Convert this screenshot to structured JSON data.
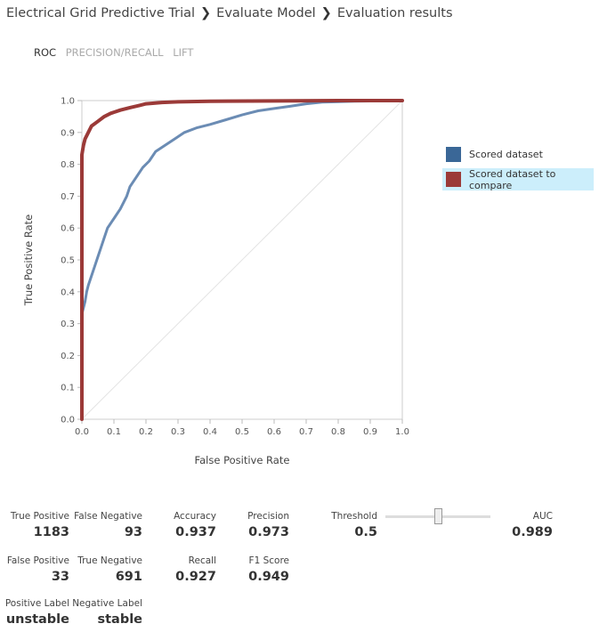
{
  "breadcrumb": {
    "items": [
      "Electrical Grid Predictive Trial",
      "Evaluate Model",
      "Evaluation results"
    ],
    "separator": "❯"
  },
  "tabs": [
    {
      "label": "ROC",
      "active": true
    },
    {
      "label": "PRECISION/RECALL",
      "active": false
    },
    {
      "label": "LIFT",
      "active": false
    }
  ],
  "legend": [
    {
      "label": "Scored dataset",
      "color": "#3a6797"
    },
    {
      "label": "Scored dataset to compare",
      "color": "#9b3a38"
    }
  ],
  "chart_data": {
    "type": "line",
    "xlabel": "False Positive Rate",
    "ylabel": "True Positive Rate",
    "xlim": [
      0.0,
      1.0
    ],
    "ylim": [
      0.0,
      1.0
    ],
    "xticks": [
      "0.0",
      "0.1",
      "0.2",
      "0.3",
      "0.4",
      "0.5",
      "0.6",
      "0.7",
      "0.8",
      "0.9",
      "1.0"
    ],
    "yticks": [
      "0.0",
      "0.1",
      "0.2",
      "0.3",
      "0.4",
      "0.5",
      "0.6",
      "0.7",
      "0.8",
      "0.9",
      "1.0"
    ],
    "grid": false,
    "legend_position": "right",
    "series": [
      {
        "name": "Scored dataset",
        "color": "#6b8cb4",
        "x": [
          0,
          0.0,
          0.01,
          0.015,
          0.02,
          0.03,
          0.04,
          0.05,
          0.06,
          0.07,
          0.08,
          0.1,
          0.12,
          0.14,
          0.15,
          0.17,
          0.19,
          0.21,
          0.23,
          0.26,
          0.29,
          0.32,
          0.36,
          0.4,
          0.45,
          0.5,
          0.55,
          0.6,
          0.65,
          0.7,
          0.75,
          0.85,
          1.0
        ],
        "y": [
          0,
          0.33,
          0.37,
          0.4,
          0.42,
          0.45,
          0.48,
          0.51,
          0.54,
          0.57,
          0.6,
          0.63,
          0.66,
          0.7,
          0.73,
          0.76,
          0.79,
          0.81,
          0.84,
          0.86,
          0.88,
          0.9,
          0.915,
          0.925,
          0.94,
          0.955,
          0.968,
          0.975,
          0.982,
          0.99,
          0.995,
          0.998,
          1.0
        ]
      },
      {
        "name": "Scored dataset to compare",
        "color": "#9b3a38",
        "x": [
          0,
          0.0,
          0.0,
          0.005,
          0.01,
          0.02,
          0.03,
          0.05,
          0.07,
          0.09,
          0.12,
          0.15,
          0.18,
          0.2,
          0.25,
          0.3,
          0.4,
          0.6,
          0.8,
          1.0
        ],
        "y": [
          0,
          0.5,
          0.83,
          0.86,
          0.88,
          0.9,
          0.92,
          0.935,
          0.95,
          0.96,
          0.97,
          0.978,
          0.985,
          0.99,
          0.994,
          0.996,
          0.998,
          0.999,
          1.0,
          1.0
        ]
      }
    ]
  },
  "metrics": {
    "true_positive": {
      "label": "True Positive",
      "value": "1183"
    },
    "false_negative": {
      "label": "False Negative",
      "value": "93"
    },
    "accuracy": {
      "label": "Accuracy",
      "value": "0.937"
    },
    "precision": {
      "label": "Precision",
      "value": "0.973"
    },
    "threshold": {
      "label": "Threshold",
      "value": "0.5"
    },
    "auc": {
      "label": "AUC",
      "value": "0.989"
    },
    "false_positive": {
      "label": "False Positive",
      "value": "33"
    },
    "true_negative": {
      "label": "True Negative",
      "value": "691"
    },
    "recall": {
      "label": "Recall",
      "value": "0.927"
    },
    "f1_score": {
      "label": "F1 Score",
      "value": "0.949"
    },
    "positive_label": {
      "label": "Positive Label",
      "value": "unstable"
    },
    "negative_label": {
      "label": "Negative Label",
      "value": "stable"
    }
  },
  "threshold_slider": {
    "min": 0,
    "max": 1,
    "value": 0.5
  }
}
